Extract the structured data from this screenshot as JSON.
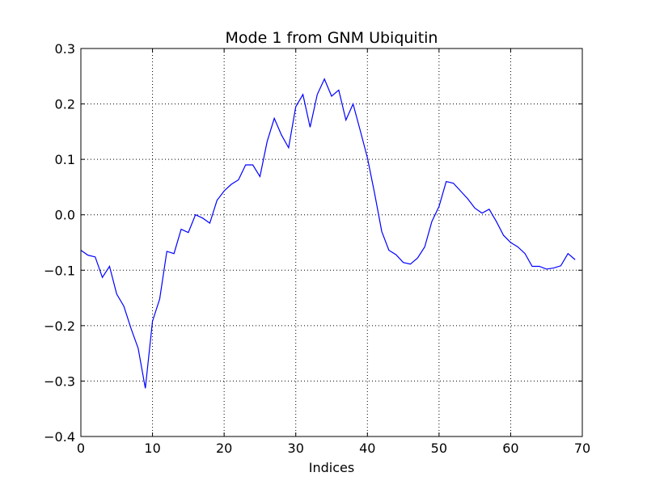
{
  "chart_data": {
    "type": "line",
    "title": "Mode 1 from GNM Ubiquitin",
    "xlabel": "Indices",
    "ylabel": "",
    "xlim": [
      0,
      70
    ],
    "ylim": [
      -0.4,
      0.3
    ],
    "xticks": [
      0,
      10,
      20,
      30,
      40,
      50,
      60,
      70
    ],
    "xtick_labels": [
      "0",
      "10",
      "20",
      "30",
      "40",
      "50",
      "60",
      "70"
    ],
    "yticks": [
      -0.4,
      -0.3,
      -0.2,
      -0.1,
      0.0,
      0.1,
      0.2,
      0.3
    ],
    "ytick_labels": [
      "−0.4",
      "−0.3",
      "−0.2",
      "−0.1",
      "0.0",
      "0.1",
      "0.2",
      "0.3"
    ],
    "grid": true,
    "line_color": "#0000ff",
    "series": [
      {
        "x": [
          0,
          1,
          2,
          3,
          4,
          5,
          6,
          7,
          8,
          9,
          10,
          11,
          12,
          13,
          14,
          15,
          16,
          17,
          18,
          19,
          20,
          21,
          22,
          23,
          24,
          25,
          26,
          27,
          28,
          29,
          30,
          31,
          32,
          33,
          34,
          35,
          36,
          37,
          38,
          39,
          40,
          41,
          42,
          43,
          44,
          45,
          46,
          47,
          48,
          49,
          50,
          51,
          52,
          53,
          54,
          55,
          56,
          57,
          58,
          59,
          60,
          61,
          62,
          63,
          64,
          65,
          66,
          67,
          68,
          69
        ],
        "y": [
          -0.064,
          -0.073,
          -0.076,
          -0.113,
          -0.093,
          -0.143,
          -0.165,
          -0.205,
          -0.241,
          -0.313,
          -0.192,
          -0.152,
          -0.066,
          -0.07,
          -0.026,
          -0.032,
          0.0,
          -0.006,
          -0.015,
          0.026,
          0.043,
          0.055,
          0.063,
          0.09,
          0.09,
          0.069,
          0.132,
          0.174,
          0.144,
          0.121,
          0.195,
          0.217,
          0.158,
          0.217,
          0.245,
          0.214,
          0.225,
          0.171,
          0.2,
          0.152,
          0.103,
          0.039,
          -0.03,
          -0.064,
          -0.072,
          -0.086,
          -0.089,
          -0.078,
          -0.058,
          -0.012,
          0.015,
          0.06,
          0.057,
          0.043,
          0.029,
          0.012,
          0.003,
          0.01,
          -0.012,
          -0.037,
          -0.05,
          -0.058,
          -0.07,
          -0.093,
          -0.093,
          -0.098,
          -0.096,
          -0.092,
          -0.07,
          -0.081
        ]
      }
    ]
  }
}
